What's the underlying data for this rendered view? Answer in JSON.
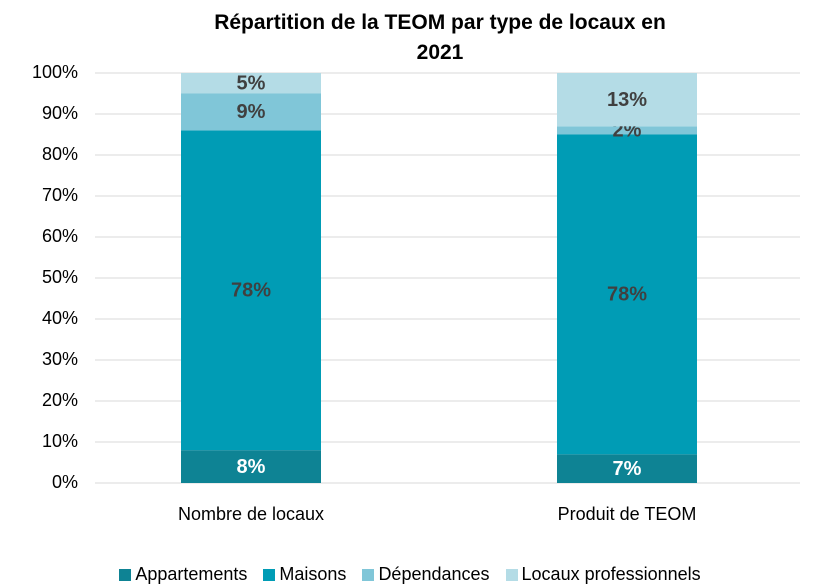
{
  "chart_data": {
    "type": "stacked_bar",
    "title": "Répartition de la TEOM par type de locaux en 2021",
    "categories": [
      "Nombre de locaux",
      "Produit de TEOM"
    ],
    "series": [
      {
        "name": "Appartements",
        "color": "#0e8394",
        "values": [
          8,
          7
        ],
        "value_labels": [
          "8%",
          "7%"
        ]
      },
      {
        "name": "Maisons",
        "color": "#009cb5",
        "values": [
          78,
          78
        ],
        "value_labels": [
          "78%",
          "78%"
        ]
      },
      {
        "name": "Dépendances",
        "color": "#80c6d8",
        "values": [
          9,
          2
        ],
        "value_labels": [
          "9%",
          "2%"
        ]
      },
      {
        "name": "Locaux professionnels",
        "color": "#b4dce6",
        "values": [
          5,
          13
        ],
        "value_labels": [
          "5%",
          "13%"
        ]
      }
    ],
    "ylim": [
      0,
      100
    ],
    "yticks": [
      {
        "value": 0,
        "label": "0%"
      },
      {
        "value": 10,
        "label": "10%"
      },
      {
        "value": 20,
        "label": "20%"
      },
      {
        "value": 30,
        "label": "30%"
      },
      {
        "value": 40,
        "label": "40%"
      },
      {
        "value": 50,
        "label": "50%"
      },
      {
        "value": 60,
        "label": "60%"
      },
      {
        "value": 70,
        "label": "70%"
      },
      {
        "value": 80,
        "label": "80%"
      },
      {
        "value": 90,
        "label": "90%"
      },
      {
        "value": 100,
        "label": "100%"
      }
    ],
    "grid": true,
    "legend": "bottom"
  }
}
